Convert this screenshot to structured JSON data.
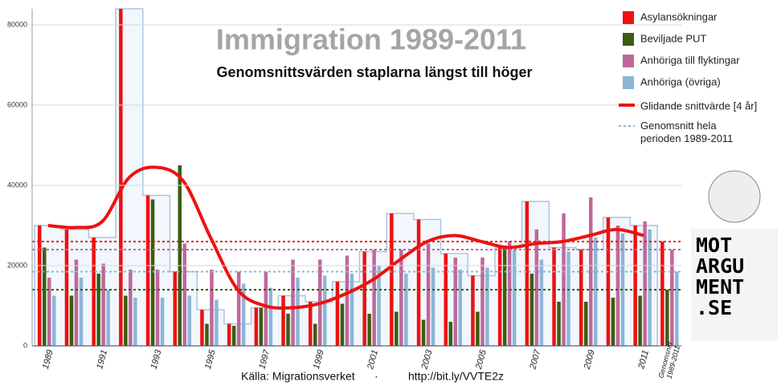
{
  "chart_data": {
    "type": "bar",
    "title": "Immigration 1989-2011",
    "subtitle": "Genomsnittsvärden staplarna längst till höger",
    "source": "Källa: Migrationsverket",
    "separator": "·",
    "url": "http://bit.ly/VVTE2z",
    "logo": [
      "MOT",
      "ARGU",
      "MENT",
      ".SE"
    ],
    "categories": [
      "1989",
      null,
      "1991",
      null,
      "1993",
      null,
      "1995",
      null,
      "1997",
      null,
      "1999",
      null,
      "2001",
      null,
      "2003",
      null,
      "2005",
      null,
      "2007",
      null,
      "2009",
      null,
      "2011",
      "Genomsnitt 1989-2011"
    ],
    "series": [
      {
        "name": "Asylansökningar",
        "color": "#ee1111",
        "values": [
          30000,
          29000,
          27000,
          84000,
          37500,
          18500,
          9000,
          5500,
          9500,
          12500,
          11000,
          16000,
          23500,
          33000,
          31500,
          23000,
          17500,
          24500,
          36000,
          24500,
          24000,
          32000,
          30000,
          26000
        ]
      },
      {
        "name": "Beviljade PUT",
        "color": "#3b5e10",
        "values": [
          24500,
          12500,
          18000,
          12500,
          36500,
          45000,
          5500,
          5000,
          9500,
          8000,
          5500,
          10500,
          8000,
          8500,
          6500,
          6000,
          8500,
          25000,
          18000,
          11000,
          11000,
          12000,
          12500,
          14000
        ]
      },
      {
        "name": "Anhöriga till flyktingar",
        "color": "#c0679a",
        "values": [
          17000,
          21500,
          20500,
          19000,
          19000,
          25500,
          19000,
          18500,
          18500,
          21500,
          21500,
          22500,
          24000,
          24000,
          25500,
          22000,
          22000,
          26000,
          29000,
          33000,
          37000,
          30000,
          31000,
          24000
        ]
      },
      {
        "name": "Anhöriga (övriga)",
        "color": "#8db6d6",
        "values": [
          12500,
          17000,
          14000,
          12000,
          12000,
          12500,
          11500,
          15500,
          14500,
          17000,
          17500,
          18000,
          20000,
          18000,
          19500,
          19000,
          19500,
          24000,
          21500,
          23500,
          27000,
          28000,
          29000,
          18500
        ]
      }
    ],
    "moving_average": {
      "name": "Glidande snittvärde [4 år]",
      "color": "#ee1111",
      "values": [
        30000,
        29500,
        31000,
        42000,
        44500,
        41000,
        27000,
        14000,
        10000,
        9500,
        10500,
        13000,
        16500,
        21500,
        26000,
        27500,
        26000,
        24500,
        25500,
        26000,
        27500,
        29000,
        27500,
        null
      ]
    },
    "average_label": "Genomsnitt hela perioden 1989-2011",
    "ylim": [
      0,
      80000
    ],
    "yticks": [
      0,
      20000,
      40000,
      60000,
      80000
    ],
    "grid": true
  }
}
